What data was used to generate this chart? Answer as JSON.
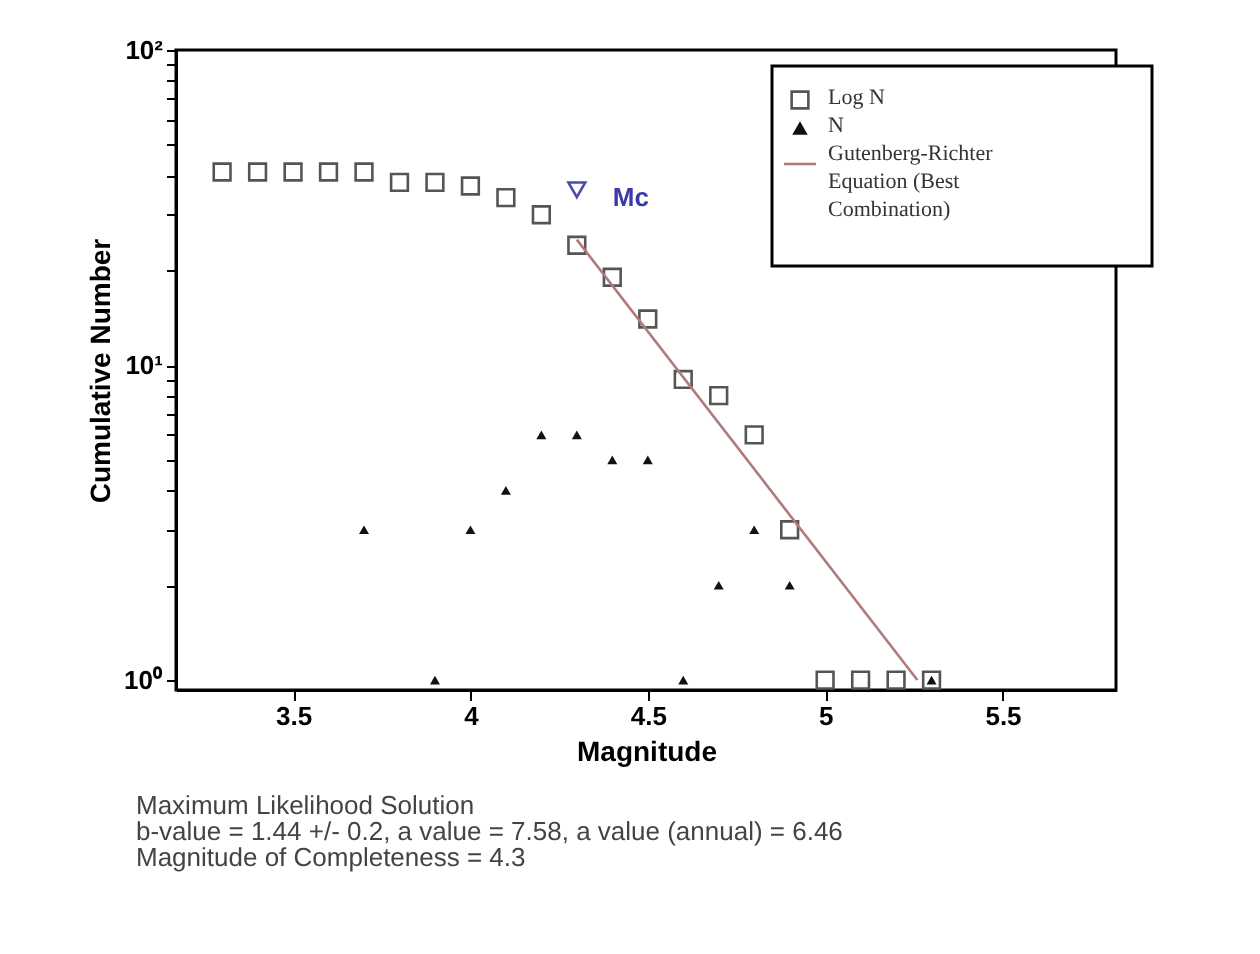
{
  "chart_data": {
    "type": "scatter",
    "xlabel": "Magnitude",
    "ylabel": "Cumulative Number",
    "log": "y",
    "xlim": [
      3.17,
      5.82
    ],
    "xticks": [
      3.5,
      4,
      4.5,
      5,
      5.5
    ],
    "ylim": [
      0.93,
      100
    ],
    "yticks": [
      {
        "value": 1,
        "label": "10⁰"
      },
      {
        "value": 2,
        "label": null
      },
      {
        "value": 3,
        "label": null
      },
      {
        "value": 4,
        "label": null
      },
      {
        "value": 5,
        "label": null
      },
      {
        "value": 6,
        "label": null
      },
      {
        "value": 7,
        "label": null
      },
      {
        "value": 8,
        "label": null
      },
      {
        "value": 9,
        "label": null
      },
      {
        "value": 10,
        "label": "10¹"
      },
      {
        "value": 20,
        "label": null
      },
      {
        "value": 30,
        "label": null
      },
      {
        "value": 40,
        "label": null
      },
      {
        "value": 50,
        "label": null
      },
      {
        "value": 60,
        "label": null
      },
      {
        "value": 70,
        "label": null
      },
      {
        "value": 80,
        "label": null
      },
      {
        "value": 90,
        "label": null
      },
      {
        "value": 100,
        "label": "10²"
      }
    ],
    "grid": false,
    "legend": "top right",
    "series": [
      {
        "name": "Log N",
        "marker": "square",
        "color": "#555555",
        "x": [
          3.3,
          3.4,
          3.5,
          3.6,
          3.7,
          3.8,
          3.9,
          4.0,
          4.1,
          4.2,
          4.3,
          4.4,
          4.5,
          4.6,
          4.7,
          4.8,
          4.9,
          5.0,
          5.1,
          5.2,
          5.3
        ],
        "values": [
          41,
          41,
          41,
          41,
          41,
          38,
          38,
          37,
          34,
          30,
          24,
          19,
          14,
          9,
          8,
          6,
          3,
          1,
          1,
          1,
          1
        ]
      },
      {
        "name": "N",
        "marker": "triangle",
        "color": "#111111",
        "x": [
          3.7,
          3.9,
          4.0,
          4.1,
          4.2,
          4.3,
          4.4,
          4.5,
          4.6,
          4.7,
          4.8,
          4.9,
          5.3
        ],
        "values": [
          3,
          1,
          3,
          4,
          6,
          6,
          5,
          5,
          1,
          2,
          3,
          2,
          1
        ]
      },
      {
        "name": "Gutenberg-Richter Equation (Best Combination)",
        "type": "line",
        "color": "#b07a7a",
        "x": [
          4.3,
          5.26
        ],
        "values": [
          25,
          1
        ]
      },
      {
        "marker": "triangle-down",
        "color": "#4a4ab0",
        "x": [
          4.3
        ],
        "values": [
          36
        ]
      }
    ],
    "annotations": [
      {
        "text": "Mc",
        "x": 4.3,
        "y": 36
      },
      "Maximum Likelihood Solution",
      "b-value = 1.44 +/- 0.2,  a value = 7.58,  a value (annual) = 6.46",
      "Magnitude of Completeness = 4.3"
    ]
  }
}
